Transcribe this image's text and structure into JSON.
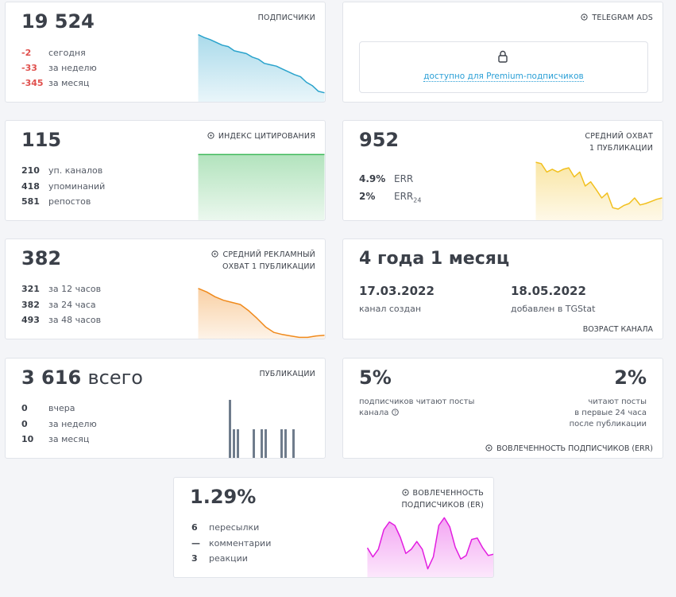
{
  "cards": [
    {
      "value": "19 524",
      "title": [
        "ПОДПИСЧИКИ"
      ],
      "value_color": "#e0504d",
      "stats": [
        {
          "value": "-2",
          "label": "сегодня"
        },
        {
          "value": "-33",
          "label": "за неделю"
        },
        {
          "value": "-345",
          "label": "за месяц"
        }
      ],
      "spark": {
        "type": "area",
        "color": "#2aa3cc",
        "ylim": [
          0,
          100
        ],
        "values": [
          97,
          93,
          90,
          86,
          82,
          80,
          74,
          72,
          70,
          65,
          62,
          56,
          54,
          52,
          48,
          44,
          40,
          37,
          29,
          24,
          16,
          14
        ]
      }
    },
    {
      "title": [
        "TELEGRAM ADS"
      ],
      "link": "доступно для Premium-подписчиков"
    },
    {
      "value": "115",
      "title": [
        "ИНДЕКС ЦИТИРОВАНИЯ"
      ],
      "stats": [
        {
          "value": "210",
          "label": "уп. каналов"
        },
        {
          "value": "418",
          "label": "упоминаний"
        },
        {
          "value": "581",
          "label": "репостов"
        }
      ],
      "spark": {
        "type": "area",
        "color": "#3fb95a",
        "ylim": [
          0,
          100
        ],
        "values": [
          95,
          95,
          95,
          95,
          95,
          95
        ]
      }
    },
    {
      "value": "952",
      "title": [
        "СРЕДНИЙ ОХВАТ",
        "1 ПУБЛИКАЦИИ"
      ],
      "stats": [
        {
          "value": "4.9%",
          "label": "ERR"
        },
        {
          "value": "2%",
          "label": "ERR",
          "sub": "24"
        }
      ],
      "spark": {
        "type": "area",
        "color": "#f2c01e",
        "ylim": [
          0,
          100
        ],
        "values": [
          84,
          82,
          70,
          74,
          70,
          74,
          76,
          63,
          70,
          50,
          56,
          45,
          33,
          40,
          19,
          17,
          22,
          25,
          33,
          23,
          25,
          28,
          31,
          33
        ]
      }
    },
    {
      "value": "382",
      "title": [
        "СРЕДНИЙ РЕКЛАМНЫЙ",
        "ОХВАТ 1 ПУБЛИКАЦИИ"
      ],
      "stats": [
        {
          "value": "321",
          "label": "за 12 часов"
        },
        {
          "value": "382",
          "label": "за 24 часа"
        },
        {
          "value": "493",
          "label": "за 48 часов"
        }
      ],
      "spark": {
        "type": "area",
        "color": "#f08a1c",
        "ylim": [
          0,
          100
        ],
        "values": [
          73,
          68,
          61,
          56,
          53,
          50,
          41,
          30,
          18,
          10,
          7,
          5,
          3,
          3,
          5,
          6
        ]
      }
    },
    {
      "value": "4 года 1 месяц",
      "dates": [
        {
          "value": "17.03.2022",
          "label": "канал создан"
        },
        {
          "value": "18.05.2022",
          "label": "добавлен в TGStat"
        }
      ],
      "footer": "ВОЗРАСТ КАНАЛА"
    },
    {
      "value": "3 616",
      "suffix": "всего",
      "title": [
        "ПУБЛИКАЦИИ"
      ],
      "stats": [
        {
          "value": "0",
          "label": "вчера"
        },
        {
          "value": "0",
          "label": "за неделю"
        },
        {
          "value": "10",
          "label": "за месяц"
        }
      ],
      "spark": {
        "type": "bars",
        "color": "#6f7c8c",
        "ylim": [
          0,
          2
        ],
        "values": [
          0,
          0,
          0,
          0,
          0,
          0,
          2,
          1,
          1,
          0,
          0,
          0,
          1,
          0,
          1,
          1,
          0,
          0,
          0,
          1,
          1,
          0,
          1,
          0,
          0,
          0,
          0,
          0,
          0,
          0
        ]
      }
    },
    {
      "left": {
        "value": "5%",
        "lines": [
          "подписчиков читают посты",
          "канала"
        ]
      },
      "right": {
        "value": "2%",
        "lines": [
          "читают посты",
          "в первые 24 часа",
          "после публикации"
        ]
      },
      "footer": "ВОВЛЕЧЕННОСТЬ ПОДПИСЧИКОВ (ERR)"
    },
    {
      "value": "1.29%",
      "title": [
        "ВОВЛЕЧЕННОСТЬ",
        "ПОДПИСЧИКОВ (ER)"
      ],
      "stats": [
        {
          "value": "6",
          "label": "пересылки"
        },
        {
          "value": "—",
          "label": "комментарии"
        },
        {
          "value": "3",
          "label": "реакции"
        }
      ],
      "spark": {
        "type": "area",
        "color": "#e21ee0",
        "ylim": [
          0,
          100
        ],
        "values": [
          43,
          30,
          41,
          69,
          80,
          75,
          58,
          35,
          41,
          52,
          41,
          13,
          30,
          75,
          86,
          73,
          44,
          27,
          32,
          55,
          57,
          43,
          32,
          34
        ]
      }
    }
  ]
}
